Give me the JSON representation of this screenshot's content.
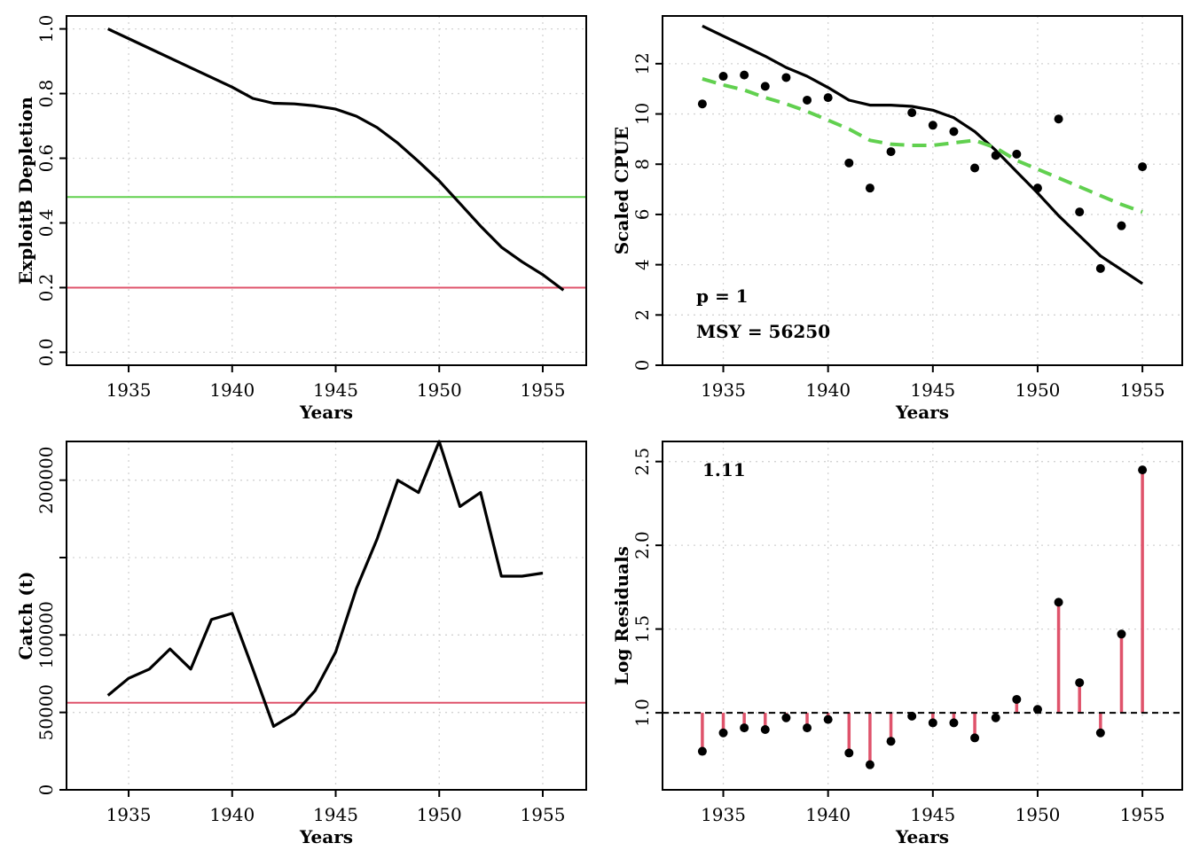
{
  "colors": {
    "line": "#000000",
    "green": "#61D04F",
    "red": "#DF536B",
    "grid": "#D3D3D3"
  },
  "chart_data": [
    {
      "id": "depletion",
      "type": "line",
      "xlabel": "Years",
      "ylabel": "ExploitB Depletion",
      "xlim": [
        1932.0,
        1957.1
      ],
      "ylim": [
        -0.04,
        1.04
      ],
      "xticks": [
        1935,
        1940,
        1945,
        1950,
        1955
      ],
      "yticks": [
        0.0,
        0.2,
        0.4,
        0.6,
        0.8,
        1.0
      ],
      "ytick_labels": [
        "0.0",
        "0.2",
        "0.4",
        "0.6",
        "0.8",
        "1.0"
      ],
      "grid": true,
      "hlines": [
        {
          "value": 0.48,
          "color": "#61D04F"
        },
        {
          "value": 0.2,
          "color": "#DF536B"
        }
      ],
      "series": [
        {
          "style": "line",
          "color": "#000000",
          "x": [
            1934,
            1935,
            1936,
            1937,
            1938,
            1939,
            1940,
            1941,
            1942,
            1943,
            1944,
            1945,
            1946,
            1947,
            1948,
            1949,
            1950,
            1951,
            1952,
            1953,
            1954,
            1955,
            1956
          ],
          "y": [
            1.0,
            0.97,
            0.94,
            0.91,
            0.88,
            0.85,
            0.82,
            0.785,
            0.77,
            0.768,
            0.762,
            0.752,
            0.73,
            0.695,
            0.647,
            0.59,
            0.53,
            0.46,
            0.39,
            0.325,
            0.28,
            0.24,
            0.192
          ]
        }
      ]
    },
    {
      "id": "cpue",
      "type": "scatter",
      "xlabel": "Years",
      "ylabel": "Scaled CPUE",
      "xlim": [
        1932.1,
        1956.9
      ],
      "ylim": [
        0,
        13.9
      ],
      "xticks": [
        1935,
        1940,
        1945,
        1950,
        1955
      ],
      "yticks": [
        0,
        2,
        4,
        6,
        8,
        10,
        12
      ],
      "ytick_labels": [
        "0",
        "2",
        "4",
        "6",
        "8",
        "10",
        "12"
      ],
      "grid": true,
      "annotations": [
        "p = 1",
        "MSY = 56250"
      ],
      "series": [
        {
          "style": "points",
          "color": "#000000",
          "x": [
            1934,
            1935,
            1936,
            1937,
            1938,
            1939,
            1940,
            1941,
            1942,
            1943,
            1944,
            1945,
            1946,
            1947,
            1948,
            1949,
            1950,
            1951,
            1952,
            1953,
            1954,
            1955
          ],
          "y": [
            10.4,
            11.5,
            11.55,
            11.1,
            11.45,
            10.55,
            10.65,
            8.05,
            7.05,
            8.5,
            10.05,
            9.55,
            9.3,
            7.85,
            8.35,
            8.4,
            7.05,
            9.8,
            6.1,
            3.85,
            5.55,
            7.9
          ]
        },
        {
          "style": "line",
          "color": "#000000",
          "x": [
            1934,
            1935,
            1936,
            1937,
            1938,
            1939,
            1940,
            1941,
            1942,
            1943,
            1944,
            1945,
            1946,
            1947,
            1948,
            1949,
            1950,
            1951,
            1952,
            1953,
            1954,
            1955
          ],
          "y": [
            13.5,
            13.1,
            12.7,
            12.3,
            11.85,
            11.5,
            11.05,
            10.55,
            10.35,
            10.35,
            10.3,
            10.15,
            9.85,
            9.3,
            8.55,
            7.7,
            6.85,
            5.95,
            5.15,
            4.35,
            3.8,
            3.25
          ]
        },
        {
          "style": "dashed",
          "color": "#61D04F",
          "x": [
            1934,
            1935,
            1936,
            1937,
            1938,
            1939,
            1940,
            1941,
            1942,
            1943,
            1944,
            1945,
            1946,
            1947,
            1948,
            1949,
            1950,
            1951,
            1952,
            1953,
            1954,
            1955
          ],
          "y": [
            11.4,
            11.15,
            10.95,
            10.65,
            10.4,
            10.1,
            9.75,
            9.4,
            8.95,
            8.8,
            8.75,
            8.75,
            8.85,
            8.95,
            8.65,
            8.15,
            7.8,
            7.45,
            7.1,
            6.75,
            6.4,
            6.1
          ]
        }
      ]
    },
    {
      "id": "catch",
      "type": "line",
      "xlabel": "Years",
      "ylabel": "Catch (t)",
      "xlim": [
        1932.0,
        1957.1
      ],
      "ylim": [
        0,
        225000
      ],
      "xticks": [
        1935,
        1940,
        1945,
        1950,
        1955
      ],
      "yticks": [
        0,
        50000,
        100000,
        150000,
        200000
      ],
      "ytick_labels": [
        "0",
        "50000",
        "100000",
        "",
        "200000"
      ],
      "grid": true,
      "hlines": [
        {
          "value": 56250,
          "color": "#DF536B"
        }
      ],
      "series": [
        {
          "style": "line",
          "color": "#000000",
          "x": [
            1934,
            1935,
            1936,
            1937,
            1938,
            1939,
            1940,
            1941,
            1942,
            1943,
            1944,
            1945,
            1946,
            1947,
            1948,
            1949,
            1950,
            1951,
            1952,
            1953,
            1954,
            1955
          ],
          "y": [
            61000,
            72000,
            78000,
            91000,
            78000,
            110000,
            114000,
            78000,
            41000,
            49000,
            64000,
            89000,
            130000,
            162000,
            200000,
            192000,
            225000,
            183000,
            192000,
            138000,
            138000,
            140000
          ]
        }
      ]
    },
    {
      "id": "residuals",
      "type": "scatter",
      "xlabel": "Years",
      "ylabel": "Log Residuals",
      "xlim": [
        1932.1,
        1956.9
      ],
      "ylim": [
        0.54,
        2.62
      ],
      "xticks": [
        1935,
        1940,
        1945,
        1950,
        1955
      ],
      "yticks": [
        1.0,
        1.5,
        2.0,
        2.5
      ],
      "ytick_labels": [
        "1.0",
        "1.5",
        "2.0",
        "2.5"
      ],
      "grid": true,
      "baseline": 1.0,
      "annotations": [
        "1.11"
      ],
      "series": [
        {
          "style": "stems",
          "color": "#DF536B",
          "x": [
            1934,
            1935,
            1936,
            1937,
            1938,
            1939,
            1940,
            1941,
            1942,
            1943,
            1944,
            1945,
            1946,
            1947,
            1948,
            1949,
            1950,
            1951,
            1952,
            1953,
            1954,
            1955
          ],
          "y": [
            0.77,
            0.88,
            0.91,
            0.9,
            0.97,
            0.91,
            0.96,
            0.76,
            0.69,
            0.83,
            0.98,
            0.94,
            0.94,
            0.85,
            0.97,
            1.08,
            1.02,
            1.66,
            1.18,
            0.88,
            1.47,
            2.45
          ]
        }
      ]
    }
  ]
}
